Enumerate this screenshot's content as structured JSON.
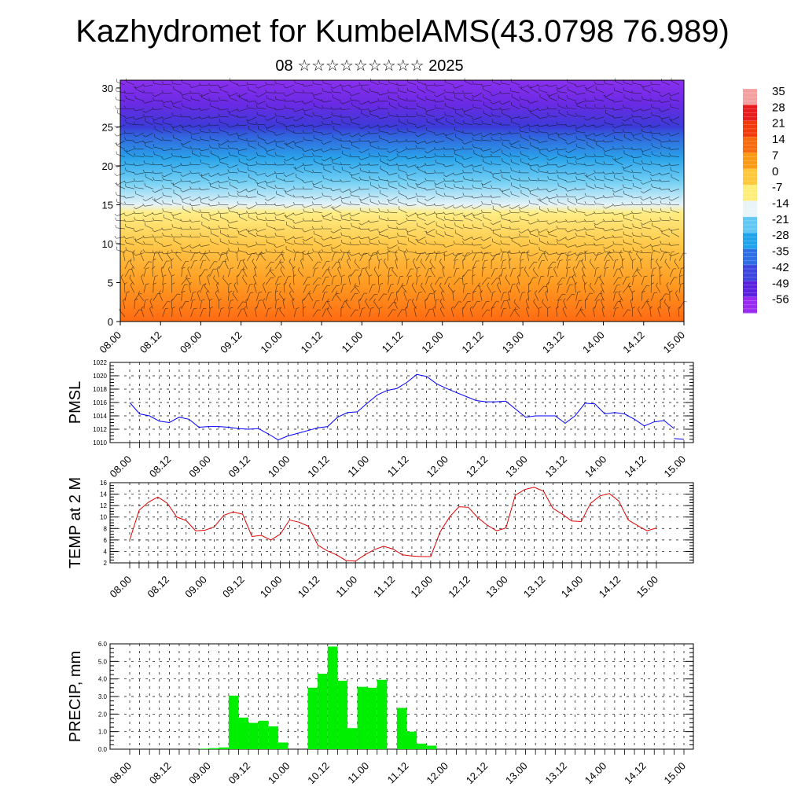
{
  "page": {
    "title": "Kazhydromet for KumbelAMS(43.0798 76.989)",
    "subtitle": "08 ☆☆☆☆☆☆☆☆☆ 2025"
  },
  "chart_data": [
    {
      "type": "heatmap",
      "title": "",
      "xlabel": "",
      "ylabel": "",
      "x_tick_labels": [
        "08.00",
        "08.12",
        "09.00",
        "09.12",
        "10.00",
        "10.12",
        "11.00",
        "11.12",
        "12.00",
        "12.12",
        "13.00",
        "13.12",
        "14.00",
        "14.12",
        "15.00"
      ],
      "y_ticks": [
        0,
        5,
        10,
        15,
        20,
        25,
        30
      ],
      "ylim": [
        0,
        31
      ],
      "colorbar": {
        "labels": [
          "35",
          "28",
          "21",
          "14",
          "7",
          "0",
          "-7",
          "-14",
          "-21",
          "-28",
          "-35",
          "-42",
          "-49",
          "-56"
        ],
        "colors": [
          "#f5a0a0",
          "#e81c1c",
          "#f23a0a",
          "#f76a0d",
          "#fb9a14",
          "#ffc73a",
          "#ffee7a",
          "#e8f4f8",
          "#62c8f3",
          "#1fa4ec",
          "#2f6fe6",
          "#3d46de",
          "#5a22de",
          "#9a2bf0"
        ]
      },
      "layers": [
        {
          "z_top": 0,
          "color": "#ff6a12"
        },
        {
          "z_top": 5,
          "color": "#ff9c22"
        },
        {
          "z_top": 10,
          "color": "#ffc94a"
        },
        {
          "z_top": 14,
          "color": "#ffee86"
        },
        {
          "z_top": 15,
          "color": "#e6f3f8"
        },
        {
          "z_top": 18,
          "color": "#72cff4"
        },
        {
          "z_top": 21,
          "color": "#2aa3ea"
        },
        {
          "z_top": 24,
          "color": "#3260dc"
        },
        {
          "z_top": 25,
          "color": "#3b3bd8"
        },
        {
          "z_top": 28,
          "color": "#6b2ae4"
        },
        {
          "z_top": 31,
          "color": "#8a30ee"
        }
      ],
      "overlay": "wind barbs"
    },
    {
      "type": "line",
      "ylabel": "PMSL",
      "x_tick_labels": [
        "08.00",
        "08.12",
        "09.00",
        "09.12",
        "10.00",
        "10.12",
        "11.00",
        "11.12",
        "12.00",
        "12.12",
        "13.00",
        "13.12",
        "14.00",
        "14.12",
        "15.00"
      ],
      "y_ticks": [
        1010,
        1012,
        1014,
        1016,
        1018,
        1020,
        1022
      ],
      "ylim": [
        1010,
        1022
      ],
      "color": "#0000ff",
      "x": [
        0,
        3,
        6,
        9,
        12,
        15,
        18,
        21,
        24,
        27,
        30,
        33,
        36,
        39,
        42,
        45,
        48,
        51,
        54,
        57,
        60,
        63,
        66,
        69,
        72,
        75,
        78,
        81,
        84,
        87,
        90,
        93,
        96,
        99,
        102,
        105,
        108,
        111,
        114,
        117,
        120,
        123,
        126,
        129,
        132,
        135,
        138,
        141,
        144,
        147,
        150,
        153,
        156,
        159,
        162,
        165
      ],
      "values": [
        1016.0,
        1014.3,
        1014.0,
        1013.2,
        1013.0,
        1013.8,
        1013.5,
        1012.3,
        1012.4,
        1012.4,
        1012.3,
        1012.1,
        1012.0,
        1012.1,
        1011.3,
        1010.4,
        1011.0,
        1011.4,
        1011.8,
        1012.2,
        1012.4,
        1013.8,
        1014.5,
        1014.6,
        1015.9,
        1017.1,
        1017.8,
        1018.1,
        1019.0,
        1020.2,
        1019.9,
        1018.8,
        1018.1,
        1017.5,
        1016.9,
        1016.3,
        1016.1,
        1016.1,
        1016.2,
        1015.0,
        1013.8,
        1014.0,
        1014.0,
        1014.0,
        1012.9,
        1014.0,
        1015.9,
        1015.8,
        1014.3,
        1014.5,
        1014.3,
        1013.5,
        1012.5,
        1013.1,
        1013.3,
        1012.1
      ],
      "tail_x": [
        165,
        168
      ],
      "tail_values": [
        1010.6,
        1010.5
      ]
    },
    {
      "type": "line",
      "ylabel": "TEMP at 2 M",
      "x_tick_labels": [
        "08.00",
        "08.12",
        "09.00",
        "09.12",
        "10.00",
        "10.12",
        "11.00",
        "11.12",
        "12.00",
        "12.12",
        "13.00",
        "13.12",
        "14.00",
        "14.12",
        "15.00"
      ],
      "y_ticks": [
        2,
        4,
        6,
        8,
        10,
        12,
        14,
        16
      ],
      "ylim": [
        2,
        16
      ],
      "color": "#dd0000",
      "x": [
        0,
        3,
        6,
        9,
        12,
        15,
        18,
        21,
        24,
        27,
        30,
        33,
        36,
        39,
        42,
        45,
        48,
        51,
        54,
        57,
        60,
        63,
        66,
        69,
        72,
        75,
        78,
        81,
        84,
        87,
        90,
        93,
        96,
        99,
        102,
        105,
        108,
        111,
        114,
        117,
        120,
        123,
        126,
        129,
        132,
        135,
        138,
        141,
        144,
        147,
        150,
        153,
        156,
        159,
        162,
        165,
        168
      ],
      "values": [
        6.0,
        11.2,
        12.6,
        13.5,
        12.4,
        10.0,
        9.4,
        7.6,
        7.7,
        8.3,
        10.3,
        10.9,
        10.5,
        6.6,
        6.8,
        6.0,
        7.0,
        9.5,
        9.1,
        8.4,
        5.1,
        4.1,
        3.4,
        2.4,
        2.3,
        3.4,
        4.3,
        4.9,
        4.4,
        3.4,
        3.2,
        3.1,
        3.1,
        7.4,
        10.0,
        11.8,
        11.7,
        9.9,
        8.6,
        7.6,
        8.1,
        13.8,
        14.8,
        15.2,
        14.5,
        11.5,
        10.5,
        9.3,
        9.2,
        12.4,
        13.7,
        14.1,
        12.8,
        9.5,
        8.5,
        7.6,
        8.1
      ]
    },
    {
      "type": "bar",
      "ylabel": "PRECIP, mm",
      "x_tick_labels": [
        "08.00",
        "08.12",
        "09.00",
        "09.12",
        "10.00",
        "10.12",
        "11.00",
        "11.12",
        "12.00",
        "12.12",
        "13.00",
        "13.12",
        "14.00",
        "14.12",
        "15.00"
      ],
      "y_ticks": [
        "0.0",
        "1.0",
        "2.0",
        "3.0",
        "4.0",
        "5.0",
        "6.0"
      ],
      "ylim": [
        0,
        6
      ],
      "color": "#00ee00",
      "x": [
        0,
        3,
        6,
        9,
        12,
        15,
        18,
        21,
        24,
        27,
        30,
        33,
        36,
        39,
        42,
        45,
        48,
        51,
        54,
        57,
        60,
        63,
        66,
        69,
        72,
        75,
        78,
        81,
        84,
        87,
        90,
        93,
        96,
        99,
        102,
        105,
        108,
        111,
        114,
        117,
        120,
        123,
        126,
        129,
        132,
        135,
        138,
        141,
        144,
        147,
        150,
        153,
        156,
        159,
        162,
        165
      ],
      "values": [
        0.0,
        0.0,
        0.0,
        0.0,
        0.0,
        0.0,
        0.0,
        0.03,
        0.06,
        0.1,
        3.05,
        1.8,
        1.5,
        1.62,
        1.3,
        0.38,
        0.0,
        0.0,
        3.5,
        4.3,
        5.85,
        3.9,
        1.2,
        3.55,
        3.5,
        3.95,
        0.0,
        2.35,
        1.0,
        0.32,
        0.2,
        0.0,
        0.0,
        0.0,
        0.0,
        0.0,
        0.0,
        0.0,
        0.0,
        0.0,
        0.0,
        0.0,
        0.0,
        0.0,
        0.0,
        0.0,
        0.0,
        0.0,
        0.0,
        0.0,
        0.0,
        0.0,
        0.0,
        0.0,
        0.0,
        0.0
      ]
    }
  ]
}
